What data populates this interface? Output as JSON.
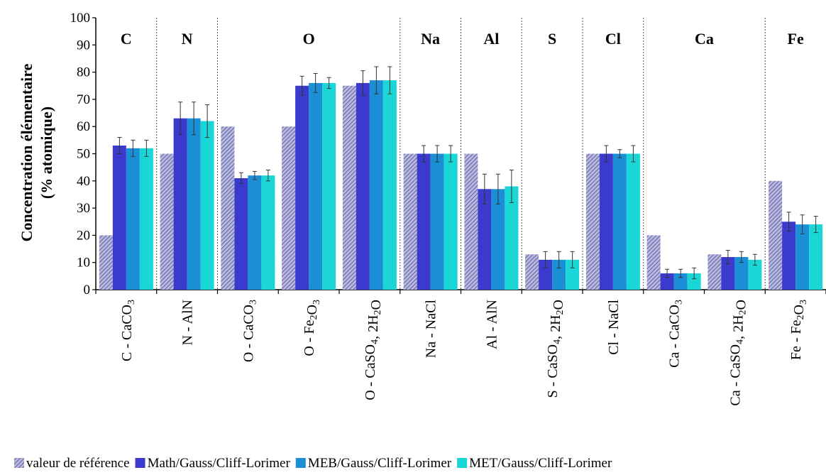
{
  "chart_data": {
    "type": "bar",
    "ylabel_line1": "Concentration élémentaire",
    "ylabel_line2": "(% atomique)",
    "ylim": [
      0,
      100
    ],
    "yticks": [
      0,
      10,
      20,
      30,
      40,
      50,
      60,
      70,
      80,
      90,
      100
    ],
    "grid": false,
    "legend_position": "bottom",
    "categories": [
      {
        "main": "C - CaCO",
        "sub": "3",
        "tail": ""
      },
      {
        "main": "N - AlN",
        "sub": "",
        "tail": ""
      },
      {
        "main": "O - CaCO",
        "sub": "3",
        "tail": ""
      },
      {
        "main": "O - Fe",
        "sub": "2",
        "tail": "O",
        "sub2": "3"
      },
      {
        "main": "O - CaSO",
        "sub": "4",
        "tail": ", 2H",
        "sub2": "2",
        "tail2": "O"
      },
      {
        "main": "Na - NaCl",
        "sub": "",
        "tail": ""
      },
      {
        "main": "Al - AlN",
        "sub": "",
        "tail": ""
      },
      {
        "main": "S - CaSO",
        "sub": "4",
        "tail": ", 2H",
        "sub2": "2",
        "tail2": "O"
      },
      {
        "main": "Cl - NaCl",
        "sub": "",
        "tail": ""
      },
      {
        "main": "Ca - CaCO",
        "sub": "3",
        "tail": ""
      },
      {
        "main": "Ca - CaSO",
        "sub": "4",
        "tail": ", 2H",
        "sub2": "2",
        "tail2": "O"
      },
      {
        "main": "Fe - Fe",
        "sub": "2",
        "tail": "O",
        "sub2": "3"
      }
    ],
    "groups": [
      {
        "label": "C",
        "start": 0,
        "end": 0
      },
      {
        "label": "N",
        "start": 1,
        "end": 1
      },
      {
        "label": "O",
        "start": 2,
        "end": 4
      },
      {
        "label": "Na",
        "start": 5,
        "end": 5
      },
      {
        "label": "Al",
        "start": 6,
        "end": 6
      },
      {
        "label": "S",
        "start": 7,
        "end": 7
      },
      {
        "label": "Cl",
        "start": 8,
        "end": 8
      },
      {
        "label": "Ca",
        "start": 9,
        "end": 10
      },
      {
        "label": "Fe",
        "start": 11,
        "end": 11
      }
    ],
    "series": [
      {
        "name": "valeur de référence",
        "color": "#8c8cc8",
        "pattern": true,
        "values": [
          20,
          50,
          60,
          60,
          75,
          50,
          50,
          13,
          50,
          20,
          13,
          40
        ],
        "errors": [
          0,
          0,
          0,
          0,
          0,
          0,
          0,
          0,
          0,
          0,
          0,
          0
        ]
      },
      {
        "name": "Math/Gauss/Cliff-Lorimer",
        "color": "#3a3acc",
        "pattern": false,
        "values": [
          53,
          63,
          41,
          75,
          76,
          50,
          37,
          11,
          50,
          6,
          12,
          25
        ],
        "errors": [
          3,
          6,
          2,
          3.5,
          4.5,
          3,
          5.5,
          3,
          3,
          1.5,
          2.5,
          3.5
        ]
      },
      {
        "name": "MEB/Gauss/Cliff-Lorimer",
        "color": "#1a8fd6",
        "pattern": false,
        "values": [
          52,
          63,
          42,
          76,
          77,
          50,
          37,
          11,
          50,
          6,
          12,
          24
        ],
        "errors": [
          3,
          6,
          1.5,
          3.5,
          5,
          3,
          5.5,
          3,
          1.5,
          1.5,
          2,
          3.5
        ]
      },
      {
        "name": "MET/Gauss/Cliff-Lorimer",
        "color": "#1ad6d6",
        "pattern": false,
        "values": [
          52,
          62,
          42,
          76,
          77,
          50,
          38,
          11,
          50,
          6,
          11,
          24
        ],
        "errors": [
          3,
          6,
          2,
          2,
          5,
          3,
          6,
          3,
          3,
          2,
          2,
          3
        ]
      }
    ]
  }
}
